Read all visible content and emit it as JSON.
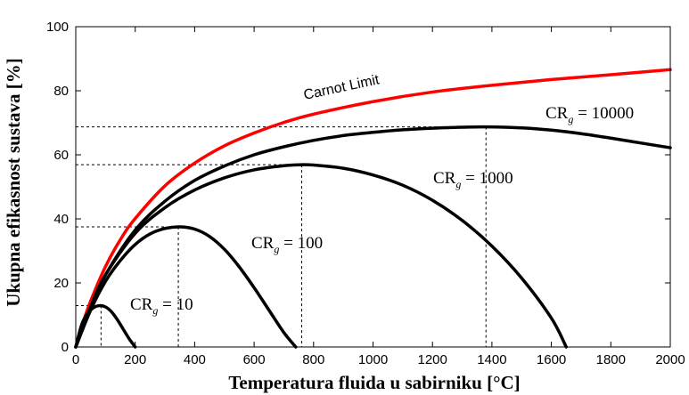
{
  "chart_data": {
    "type": "line",
    "title": "",
    "xlabel": "Temperatura fluida u sabirniku [°C]",
    "ylabel": "Ukupna efikasnost sustava [%]",
    "xlim": [
      0,
      2000
    ],
    "ylim": [
      0,
      100
    ],
    "xticks": [
      "0",
      "200",
      "400",
      "600",
      "800",
      "1000",
      "1200",
      "1400",
      "1600",
      "1800",
      "2000"
    ],
    "yticks": [
      "0",
      "20",
      "40",
      "60",
      "80",
      "100"
    ],
    "grid": false,
    "series": [
      {
        "name": "Carnot Limit",
        "color": "#ff0000",
        "x": [
          0,
          25,
          50,
          100,
          150,
          200,
          300,
          400,
          500,
          600,
          700,
          800,
          1000,
          1200,
          1400,
          1600,
          1800,
          2000
        ],
        "y": [
          0,
          7.7,
          14.3,
          25.1,
          33.5,
          40.1,
          50.3,
          57.4,
          62.8,
          66.8,
          70.1,
          72.7,
          76.6,
          79.6,
          81.7,
          83.5,
          85.0,
          86.6
        ]
      },
      {
        "name": "CR_g = 10",
        "color": "#000000",
        "x": [
          0,
          20,
          40,
          60,
          80,
          100,
          120,
          140,
          160,
          180,
          200
        ],
        "y": [
          0,
          7,
          10.5,
          12.3,
          12.9,
          12.5,
          11,
          8.5,
          5.5,
          2.5,
          0
        ]
      },
      {
        "name": "CR_g = 100",
        "color": "#000000",
        "x": [
          0,
          50,
          100,
          150,
          200,
          250,
          300,
          350,
          400,
          450,
          500,
          550,
          600,
          650,
          700,
          740
        ],
        "y": [
          0,
          11.5,
          20.5,
          27,
          32,
          35.3,
          37,
          37.5,
          36.8,
          34.5,
          30.5,
          25,
          18.5,
          11.5,
          4.5,
          0
        ]
      },
      {
        "name": "CR_g = 1000",
        "color": "#000000",
        "x": [
          0,
          50,
          100,
          200,
          300,
          400,
          500,
          600,
          700,
          760,
          800,
          900,
          1000,
          1100,
          1200,
          1300,
          1400,
          1500,
          1600,
          1650
        ],
        "y": [
          0,
          12.5,
          22.5,
          35.5,
          43.5,
          49,
          52.8,
          55.3,
          56.6,
          56.9,
          56.8,
          55.8,
          53.7,
          50.5,
          45.8,
          39.5,
          31.5,
          21.5,
          9,
          0
        ]
      },
      {
        "name": "CR_g = 10000",
        "color": "#000000",
        "x": [
          0,
          50,
          100,
          200,
          300,
          400,
          500,
          600,
          700,
          800,
          900,
          1000,
          1100,
          1200,
          1300,
          1380,
          1500,
          1600,
          1700,
          1800,
          1900,
          2000
        ],
        "y": [
          0,
          12.5,
          22.5,
          36.5,
          45.5,
          52,
          56.5,
          60,
          62.5,
          64.5,
          66,
          67,
          67.8,
          68.3,
          68.6,
          68.7,
          68.4,
          67.7,
          66.6,
          65.2,
          63.7,
          62.2
        ]
      }
    ],
    "reference_lines": [
      {
        "name": "ref-cr10",
        "x": 85,
        "y": 12.9
      },
      {
        "name": "ref-cr100",
        "x": 345,
        "y": 37.5
      },
      {
        "name": "ref-cr1000",
        "x": 760,
        "y": 56.9
      },
      {
        "name": "ref-cr10000",
        "x": 1380,
        "y": 68.7
      }
    ],
    "annotations": [
      {
        "name": "label-carnot",
        "text": "Carnot Limit"
      },
      {
        "name": "label-cr10000",
        "base": "CR",
        "sub": "g",
        "rest": " = 10000"
      },
      {
        "name": "label-cr1000",
        "base": "CR",
        "sub": "g",
        "rest": " = 1000"
      },
      {
        "name": "label-cr100",
        "base": "CR",
        "sub": "g",
        "rest": " = 100"
      },
      {
        "name": "label-cr10",
        "base": "CR",
        "sub": "g",
        "rest": " = 10"
      }
    ]
  }
}
